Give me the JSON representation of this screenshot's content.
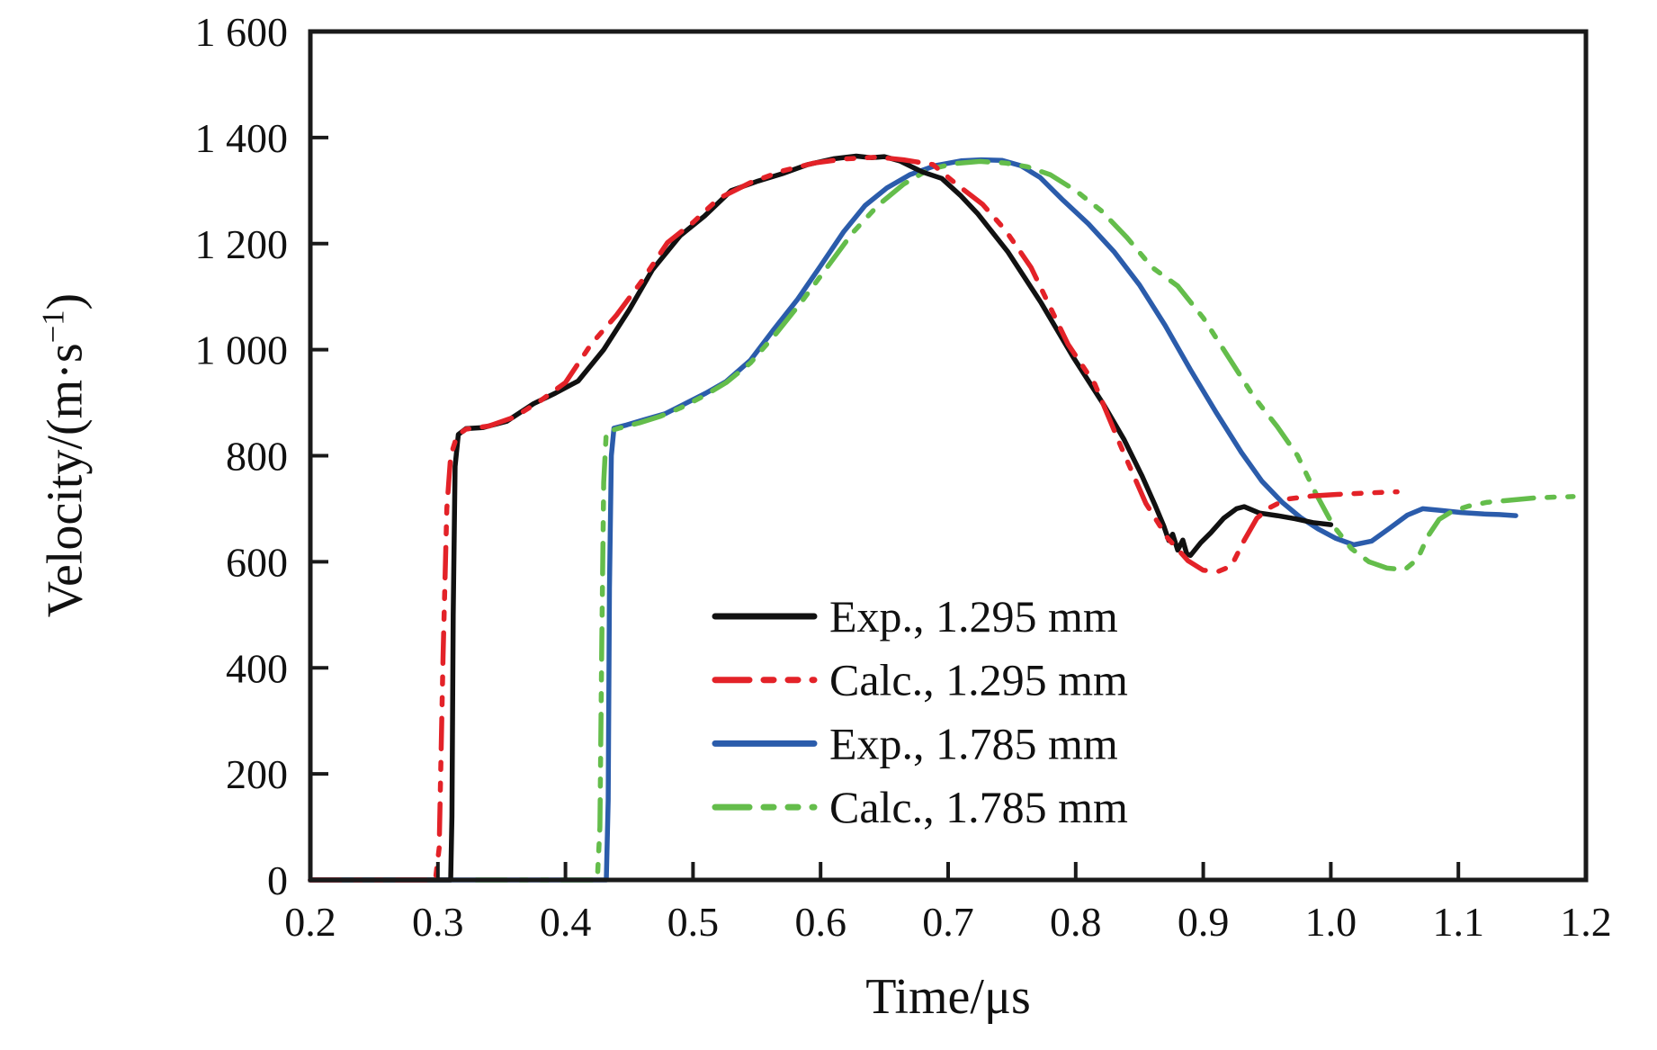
{
  "figure": {
    "background": "#ffffff",
    "axis_color": "#1a1a1a",
    "series_colors": {
      "exp_1295": "#111111",
      "calc_1295": "#e32228",
      "exp_1785": "#2b5cab",
      "calc_1785": "#64bd4b"
    }
  },
  "axes": {
    "x": {
      "title": "Time/μs",
      "tick_labels": [
        "0.2",
        "0.3",
        "0.4",
        "0.5",
        "0.6",
        "0.7",
        "0.8",
        "0.9",
        "1.0",
        "1.1",
        "1.2"
      ],
      "tick_values": [
        0.2,
        0.3,
        0.4,
        0.5,
        0.6,
        0.7,
        0.8,
        0.9,
        1.0,
        1.1,
        1.2
      ]
    },
    "y": {
      "title_main": "Velocity/(m·s",
      "title_sup": "−1",
      "title_close": ")",
      "tick_labels": [
        "0",
        "200",
        "400",
        "600",
        "800",
        "1 000",
        "1 200",
        "1 400",
        "1 600"
      ],
      "tick_values": [
        0,
        200,
        400,
        600,
        800,
        1000,
        1200,
        1400,
        1600
      ]
    }
  },
  "legend": {
    "items": [
      {
        "label": "Exp., 1.295 mm",
        "color": "#111111",
        "style": "solid"
      },
      {
        "label": "Calc., 1.295 mm",
        "color": "#e32228",
        "style": "dashdot"
      },
      {
        "label": "Exp., 1.785 mm",
        "color": "#2b5cab",
        "style": "solid"
      },
      {
        "label": "Calc., 1.785 mm",
        "color": "#64bd4b",
        "style": "dashdot"
      }
    ]
  },
  "chart_data": {
    "type": "line",
    "title": "",
    "xlabel": "Time/μs",
    "ylabel": "Velocity/(m·s⁻¹)",
    "xlim": [
      0.2,
      1.2
    ],
    "ylim": [
      0,
      1600
    ],
    "grid": false,
    "legend_position": "lower center inside",
    "series": [
      {
        "name": "Exp., 1.295 mm",
        "color": "#111111",
        "style": "solid",
        "points": [
          [
            0.2,
            0
          ],
          [
            0.31,
            0
          ],
          [
            0.311,
            120
          ],
          [
            0.312,
            500
          ],
          [
            0.3135,
            780
          ],
          [
            0.316,
            840
          ],
          [
            0.322,
            851
          ],
          [
            0.335,
            853
          ],
          [
            0.354,
            865
          ],
          [
            0.375,
            898
          ],
          [
            0.392,
            918
          ],
          [
            0.41,
            941
          ],
          [
            0.43,
            1000
          ],
          [
            0.45,
            1075
          ],
          [
            0.468,
            1150
          ],
          [
            0.49,
            1215
          ],
          [
            0.509,
            1252
          ],
          [
            0.53,
            1300
          ],
          [
            0.551,
            1318
          ],
          [
            0.57,
            1332
          ],
          [
            0.59,
            1349
          ],
          [
            0.61,
            1360
          ],
          [
            0.628,
            1365
          ],
          [
            0.64,
            1362
          ],
          [
            0.65,
            1364
          ],
          [
            0.662,
            1356
          ],
          [
            0.68,
            1335
          ],
          [
            0.695,
            1323
          ],
          [
            0.71,
            1290
          ],
          [
            0.723,
            1257
          ],
          [
            0.747,
            1184
          ],
          [
            0.773,
            1088
          ],
          [
            0.798,
            986
          ],
          [
            0.822,
            896
          ],
          [
            0.838,
            830
          ],
          [
            0.852,
            762
          ],
          [
            0.862,
            708
          ],
          [
            0.869,
            668
          ],
          [
            0.873,
            640
          ],
          [
            0.876,
            652
          ],
          [
            0.88,
            622
          ],
          [
            0.884,
            641
          ],
          [
            0.887,
            615
          ],
          [
            0.89,
            612
          ],
          [
            0.898,
            636
          ],
          [
            0.906,
            655
          ],
          [
            0.916,
            682
          ],
          [
            0.926,
            700
          ],
          [
            0.932,
            704
          ],
          [
            0.944,
            692
          ],
          [
            0.958,
            687
          ],
          [
            0.972,
            681
          ],
          [
            0.986,
            674
          ],
          [
            1.0,
            670
          ]
        ]
      },
      {
        "name": "Calc., 1.295 mm",
        "color": "#e32228",
        "style": "dashdot",
        "points": [
          [
            0.2,
            0
          ],
          [
            0.298,
            0
          ],
          [
            0.301,
            60
          ],
          [
            0.304,
            420
          ],
          [
            0.307,
            700
          ],
          [
            0.31,
            800
          ],
          [
            0.315,
            838
          ],
          [
            0.322,
            850
          ],
          [
            0.34,
            856
          ],
          [
            0.36,
            873
          ],
          [
            0.38,
            903
          ],
          [
            0.4,
            938
          ],
          [
            0.42,
            1010
          ],
          [
            0.44,
            1065
          ],
          [
            0.46,
            1130
          ],
          [
            0.48,
            1202
          ],
          [
            0.5,
            1240
          ],
          [
            0.52,
            1285
          ],
          [
            0.545,
            1315
          ],
          [
            0.57,
            1337
          ],
          [
            0.595,
            1352
          ],
          [
            0.62,
            1360
          ],
          [
            0.645,
            1363
          ],
          [
            0.665,
            1358
          ],
          [
            0.688,
            1349
          ],
          [
            0.705,
            1315
          ],
          [
            0.727,
            1274
          ],
          [
            0.745,
            1225
          ],
          [
            0.765,
            1155
          ],
          [
            0.794,
            1010
          ],
          [
            0.815,
            935
          ],
          [
            0.835,
            820
          ],
          [
            0.855,
            710
          ],
          [
            0.872,
            645
          ],
          [
            0.888,
            602
          ],
          [
            0.9,
            584
          ],
          [
            0.912,
            582
          ],
          [
            0.922,
            592
          ],
          [
            0.932,
            640
          ],
          [
            0.942,
            682
          ],
          [
            0.952,
            702
          ],
          [
            0.965,
            718
          ],
          [
            0.985,
            724
          ],
          [
            1.005,
            727
          ],
          [
            1.03,
            730
          ],
          [
            1.052,
            732
          ]
        ]
      },
      {
        "name": "Exp., 1.785 mm",
        "color": "#2b5cab",
        "style": "solid",
        "points": [
          [
            0.2,
            0
          ],
          [
            0.432,
            0
          ],
          [
            0.4335,
            150
          ],
          [
            0.4345,
            550
          ],
          [
            0.436,
            800
          ],
          [
            0.438,
            852
          ],
          [
            0.448,
            858
          ],
          [
            0.462,
            868
          ],
          [
            0.478,
            879
          ],
          [
            0.492,
            896
          ],
          [
            0.51,
            918
          ],
          [
            0.526,
            940
          ],
          [
            0.545,
            980
          ],
          [
            0.563,
            1037
          ],
          [
            0.582,
            1095
          ],
          [
            0.6,
            1158
          ],
          [
            0.618,
            1222
          ],
          [
            0.635,
            1272
          ],
          [
            0.652,
            1305
          ],
          [
            0.67,
            1330
          ],
          [
            0.69,
            1347
          ],
          [
            0.71,
            1356
          ],
          [
            0.726,
            1358
          ],
          [
            0.742,
            1357
          ],
          [
            0.757,
            1347
          ],
          [
            0.772,
            1325
          ],
          [
            0.79,
            1282
          ],
          [
            0.81,
            1237
          ],
          [
            0.83,
            1185
          ],
          [
            0.85,
            1122
          ],
          [
            0.87,
            1046
          ],
          [
            0.89,
            962
          ],
          [
            0.91,
            882
          ],
          [
            0.93,
            806
          ],
          [
            0.946,
            752
          ],
          [
            0.962,
            712
          ],
          [
            0.976,
            684
          ],
          [
            0.99,
            662
          ],
          [
            1.004,
            644
          ],
          [
            1.018,
            632
          ],
          [
            1.032,
            639
          ],
          [
            1.046,
            663
          ],
          [
            1.06,
            688
          ],
          [
            1.072,
            700
          ],
          [
            1.086,
            697
          ],
          [
            1.102,
            693
          ],
          [
            1.12,
            690
          ],
          [
            1.132,
            689
          ],
          [
            1.145,
            687
          ]
        ]
      },
      {
        "name": "Calc., 1.785 mm",
        "color": "#64bd4b",
        "style": "dashdot",
        "points": [
          [
            0.33,
            0
          ],
          [
            0.425,
            0
          ],
          [
            0.427,
            100
          ],
          [
            0.4285,
            450
          ],
          [
            0.43,
            750
          ],
          [
            0.432,
            845
          ],
          [
            0.442,
            852
          ],
          [
            0.458,
            862
          ],
          [
            0.474,
            874
          ],
          [
            0.49,
            890
          ],
          [
            0.508,
            912
          ],
          [
            0.526,
            938
          ],
          [
            0.545,
            975
          ],
          [
            0.565,
            1030
          ],
          [
            0.585,
            1090
          ],
          [
            0.605,
            1155
          ],
          [
            0.625,
            1220
          ],
          [
            0.645,
            1272
          ],
          [
            0.665,
            1312
          ],
          [
            0.685,
            1340
          ],
          [
            0.705,
            1351
          ],
          [
            0.725,
            1355
          ],
          [
            0.745,
            1352
          ],
          [
            0.762,
            1345
          ],
          [
            0.78,
            1330
          ],
          [
            0.8,
            1300
          ],
          [
            0.82,
            1262
          ],
          [
            0.84,
            1212
          ],
          [
            0.86,
            1155
          ],
          [
            0.88,
            1120
          ],
          [
            0.9,
            1060
          ],
          [
            0.92,
            985
          ],
          [
            0.94,
            910
          ],
          [
            0.958,
            855
          ],
          [
            0.974,
            800
          ],
          [
            0.988,
            730
          ],
          [
            1.002,
            668
          ],
          [
            1.016,
            625
          ],
          [
            1.03,
            600
          ],
          [
            1.044,
            588
          ],
          [
            1.058,
            585
          ],
          [
            1.068,
            605
          ],
          [
            1.076,
            648
          ],
          [
            1.085,
            680
          ],
          [
            1.095,
            695
          ],
          [
            1.108,
            705
          ],
          [
            1.122,
            712
          ],
          [
            1.14,
            716
          ],
          [
            1.158,
            720
          ],
          [
            1.175,
            722
          ],
          [
            1.19,
            723
          ]
        ]
      }
    ]
  }
}
